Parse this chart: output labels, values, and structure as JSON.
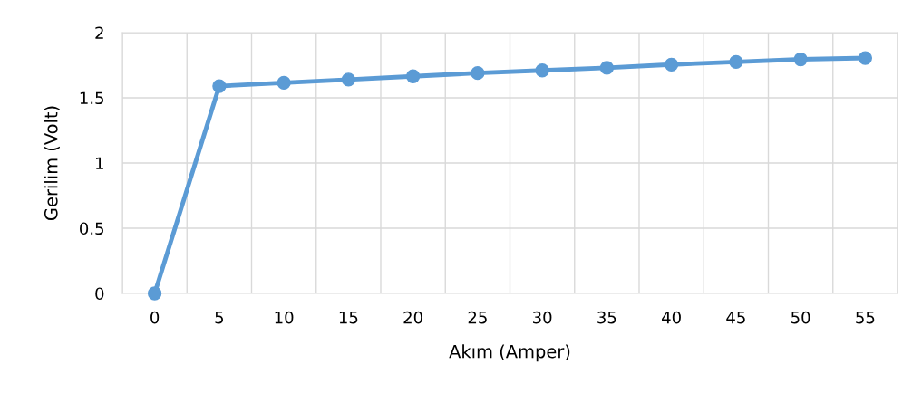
{
  "chart_data": {
    "type": "line",
    "xlabel": "Akım (Amper)",
    "ylabel": "Gerilim (Volt)",
    "categories": [
      "0",
      "5",
      "10",
      "15",
      "20",
      "25",
      "30",
      "35",
      "40",
      "45",
      "50",
      "55"
    ],
    "series": [
      {
        "color": "#5b9bd5",
        "values": [
          0,
          1.59,
          1.615,
          1.64,
          1.665,
          1.69,
          1.71,
          1.73,
          1.755,
          1.775,
          1.795,
          1.805
        ]
      }
    ],
    "ylim": [
      0,
      2
    ],
    "yticks": [
      0,
      0.5,
      1,
      1.5,
      2
    ],
    "grid": true,
    "marker": "circle",
    "line_style": "solid"
  }
}
